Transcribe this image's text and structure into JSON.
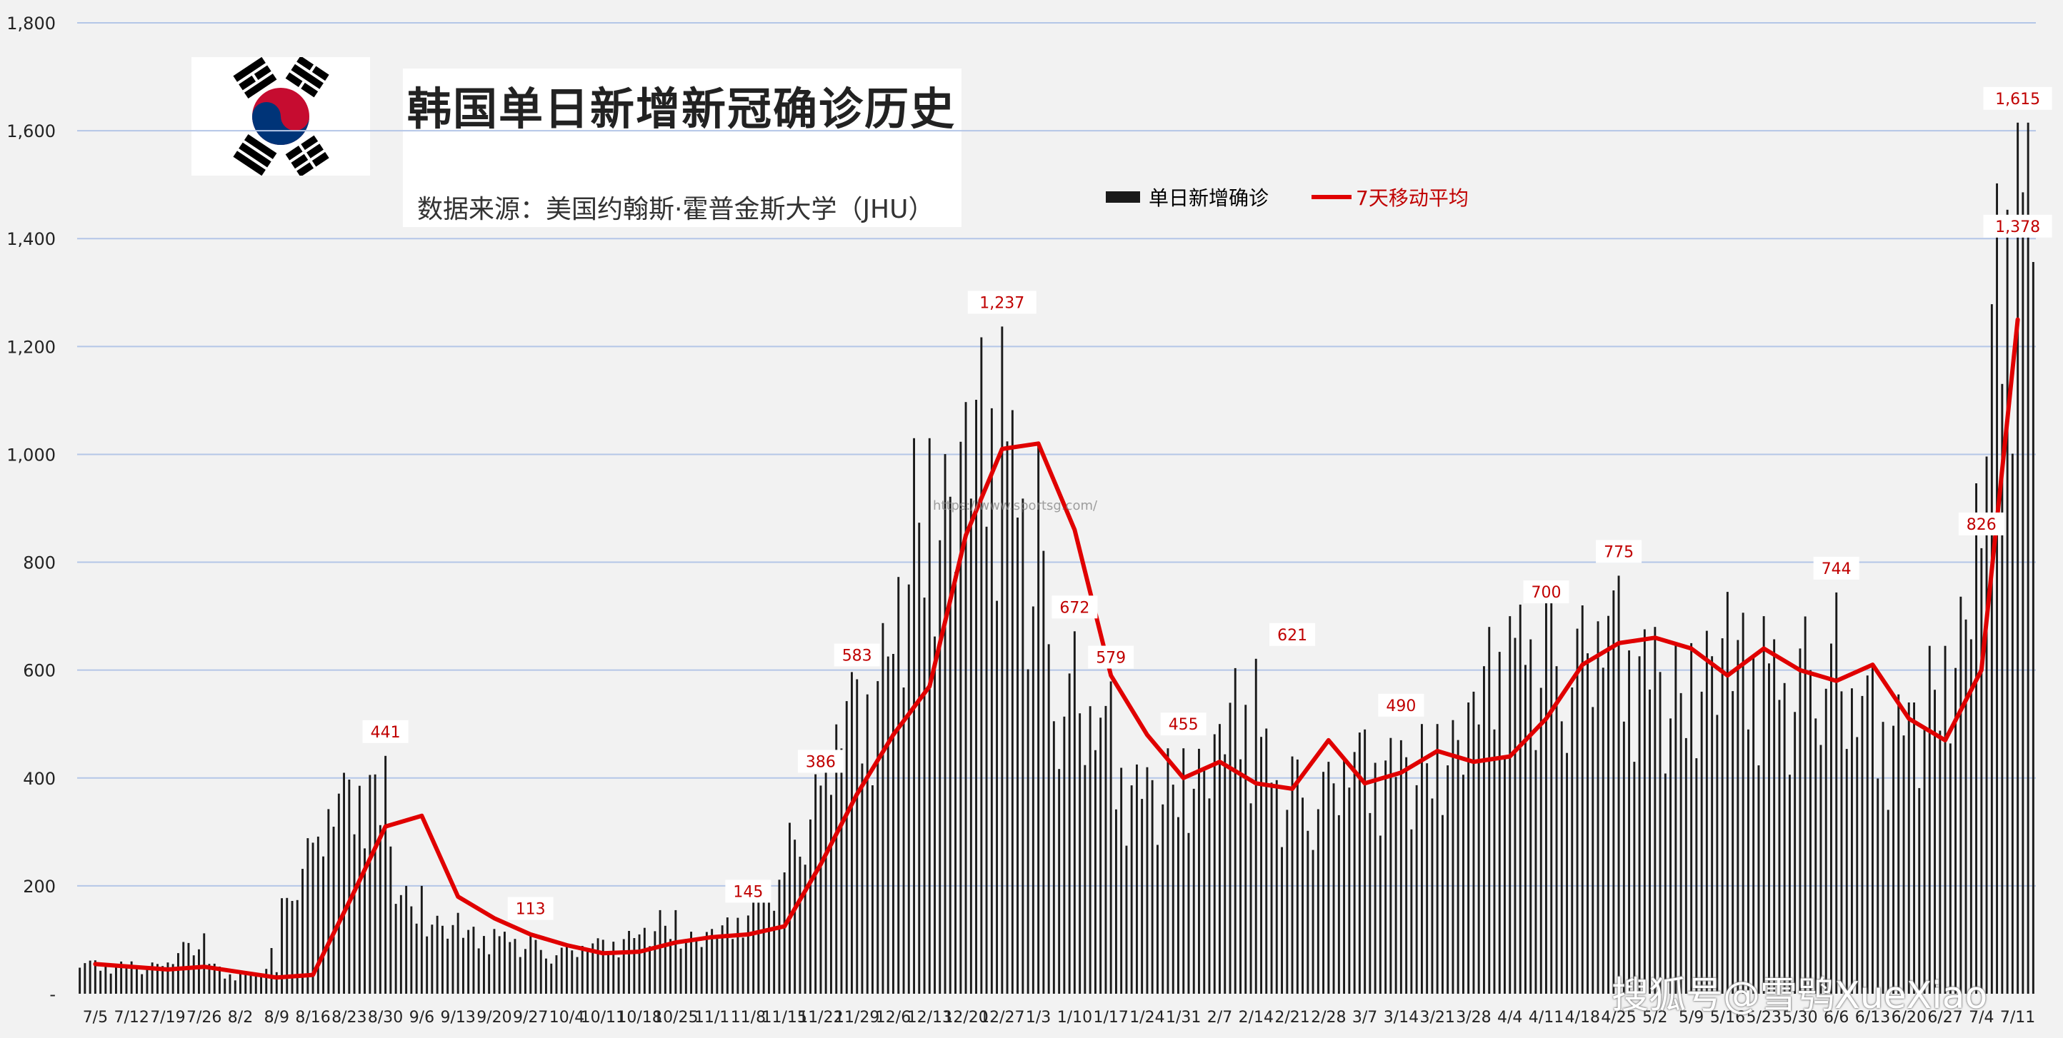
{
  "chart_data": {
    "type": "bar",
    "title": "韩国单日新增新冠确诊历史",
    "subtitle": "数据来源：美国约翰斯·霍普金斯大学（JHU）",
    "legend": [
      "单日新增确诊",
      "7天移动平均"
    ],
    "legend_position": "top-center",
    "ylim": [
      0,
      1800
    ],
    "y_ticks": [
      "-",
      "200",
      "400",
      "600",
      "800",
      "1,000",
      "1,200",
      "1,400",
      "1,600",
      "1,800"
    ],
    "x_tick_labels": [
      "7/5",
      "7/12",
      "7/19",
      "7/26",
      "8/2",
      "8/9",
      "8/16",
      "8/23",
      "8/30",
      "9/6",
      "9/13",
      "9/20",
      "9/27",
      "10/4",
      "10/11",
      "10/18",
      "10/25",
      "11/1",
      "11/8",
      "11/15",
      "11/22",
      "11/29",
      "12/6",
      "12/13",
      "12/20",
      "12/27",
      "1/3",
      "1/10",
      "1/17",
      "1/24",
      "1/31",
      "2/7",
      "2/14",
      "2/21",
      "2/28",
      "3/7",
      "3/14",
      "3/21",
      "3/28",
      "4/4",
      "4/11",
      "4/18",
      "4/25",
      "5/2",
      "5/9",
      "5/16",
      "5/23",
      "5/30",
      "6/6",
      "6/13",
      "6/20",
      "6/27",
      "7/4",
      "7/11"
    ],
    "series": [
      {
        "name": "单日新增确诊",
        "type": "bar",
        "color": "#1a1a1a",
        "weekly_peaks": [
          62,
          60,
          58,
          112,
          40,
          40,
          280,
          397,
          441,
          200,
          150,
          120,
          113,
          90,
          100,
          110,
          155,
          120,
          145,
          225,
          386,
          583,
          630,
          1030,
          1097,
          1237,
          1020,
          672,
          579,
          420,
          455,
          500,
          621,
          440,
          430,
          490,
          470,
          500,
          560,
          700,
          730,
          720,
          775,
          680,
          650,
          745,
          700,
          640,
          744,
          610,
          540,
          645,
          826,
          1615
        ]
      },
      {
        "name": "7天移动平均",
        "type": "line",
        "color": "#e00000",
        "weekly_values": [
          55,
          50,
          45,
          50,
          40,
          30,
          35,
          170,
          310,
          330,
          180,
          140,
          110,
          90,
          75,
          78,
          95,
          105,
          110,
          125,
          240,
          370,
          480,
          570,
          850,
          1010,
          1020,
          860,
          590,
          480,
          400,
          430,
          390,
          380,
          470,
          390,
          410,
          450,
          430,
          440,
          510,
          610,
          650,
          660,
          640,
          590,
          640,
          600,
          580,
          610,
          510,
          470,
          600,
          1250
        ]
      }
    ],
    "data_labels": [
      {
        "x": "8/30",
        "value": "441"
      },
      {
        "x": "9/27",
        "value": "113"
      },
      {
        "x": "11/8",
        "value": "145"
      },
      {
        "x": "11/22",
        "value": "386"
      },
      {
        "x": "11/29",
        "value": "583"
      },
      {
        "x": "12/27",
        "value": "1,237"
      },
      {
        "x": "1/10",
        "value": "672"
      },
      {
        "x": "1/17",
        "value": "579"
      },
      {
        "x": "1/31",
        "value": "455"
      },
      {
        "x": "2/21",
        "value": "621"
      },
      {
        "x": "3/14",
        "value": "490"
      },
      {
        "x": "4/11",
        "value": "700"
      },
      {
        "x": "4/25",
        "value": "775"
      },
      {
        "x": "6/6",
        "value": "744"
      },
      {
        "x": "7/4",
        "value": "826"
      },
      {
        "x": "7/11",
        "value": "1,378"
      },
      {
        "x": "7/11",
        "value": "1,615"
      }
    ],
    "grid": true
  },
  "overlay": {
    "watermark": "https://www.sportsg.com/",
    "source_mark": "搜狐号@雪鸮XueXiao"
  },
  "colors": {
    "background": "#f2f2f2",
    "bar": "#1a1a1a",
    "moving_average": "#e00000",
    "gridline": "#b4c6e7",
    "label_text": "#c00000"
  }
}
